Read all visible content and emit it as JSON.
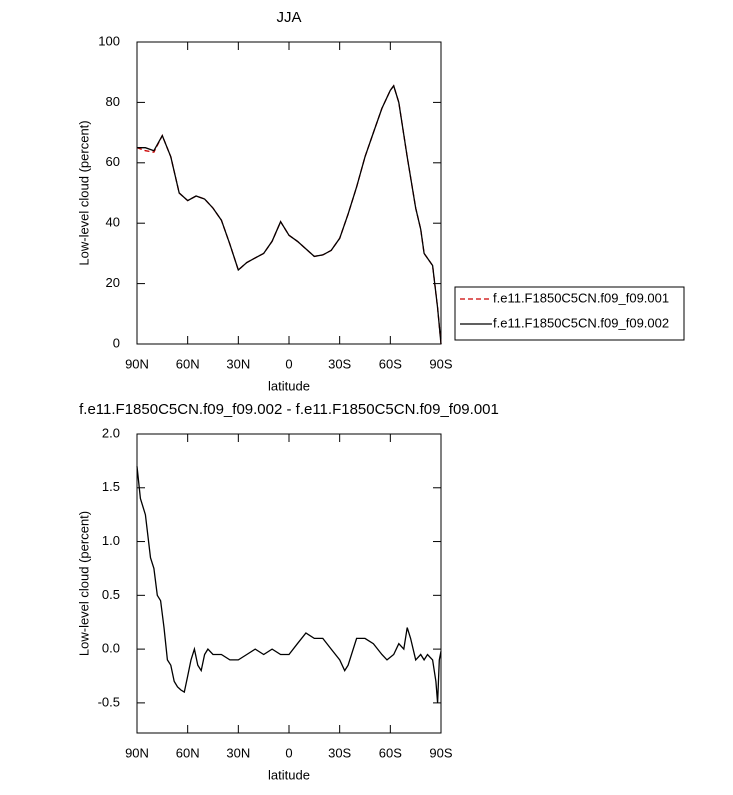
{
  "chart_data": [
    {
      "type": "line",
      "title": "JJA",
      "x_label": "latitude",
      "y_label": "Low-level cloud (percent)",
      "x": [
        90,
        85,
        80,
        75,
        70,
        65,
        60,
        55,
        50,
        45,
        40,
        35,
        30,
        25,
        20,
        15,
        10,
        5,
        0,
        -5,
        -10,
        -15,
        -20,
        -25,
        -30,
        -35,
        -40,
        -45,
        -50,
        -55,
        -60,
        -62,
        -65,
        -70,
        -75,
        -78,
        -80,
        -85,
        -88,
        -90
      ],
      "series": [
        {
          "name": "f.e11.F1850C5CN.f09_f09.001",
          "color": "#cc0000",
          "linestyle": "dashed",
          "values": [
            65,
            64,
            63.5,
            69,
            62,
            50,
            47.5,
            49,
            48,
            45,
            41,
            33,
            24.5,
            27,
            28.5,
            30,
            34,
            40.5,
            36,
            34,
            31.5,
            29,
            29.5,
            31,
            35,
            43,
            52,
            62,
            70,
            78,
            84,
            85.5,
            80,
            62,
            45,
            38,
            30,
            26,
            12,
            0
          ]
        },
        {
          "name": "f.e11.F1850C5CN.f09_f09.002",
          "color": "#000000",
          "linestyle": "solid",
          "values": [
            65,
            65,
            64,
            69,
            62,
            50,
            47.5,
            49,
            48,
            45,
            41,
            33,
            24.5,
            27,
            28.5,
            30,
            34,
            40.5,
            36,
            34,
            31.5,
            29,
            29.5,
            31,
            35,
            43,
            52,
            62,
            70,
            78,
            84,
            85.5,
            80,
            62,
            45,
            38,
            30,
            26,
            12,
            0
          ]
        }
      ],
      "xlim": [
        90,
        -90
      ],
      "xticks": [
        {
          "value": 90,
          "label": "90N"
        },
        {
          "value": 60,
          "label": "60N"
        },
        {
          "value": 30,
          "label": "30N"
        },
        0,
        {
          "value": -30,
          "label": "30S"
        },
        {
          "value": -60,
          "label": "60S"
        },
        {
          "value": -90,
          "label": "90S"
        }
      ],
      "ylim": [
        0,
        100
      ],
      "yticks": [
        0,
        20,
        40,
        60,
        80,
        100
      ],
      "legend": "right"
    },
    {
      "type": "line",
      "title": "f.e11.F1850C5CN.f09_f09.002 - f.e11.F1850C5CN.f09_f09.001",
      "x_label": "latitude",
      "y_label": "Low-level cloud (percent)",
      "x": [
        90,
        88,
        85,
        82,
        80,
        78,
        76,
        74,
        72,
        70,
        68,
        66,
        64,
        62,
        60,
        58,
        56,
        54,
        52,
        50,
        48,
        45,
        40,
        35,
        30,
        25,
        20,
        15,
        10,
        5,
        0,
        -5,
        -10,
        -15,
        -20,
        -25,
        -30,
        -33,
        -35,
        -40,
        -45,
        -50,
        -55,
        -58,
        -62,
        -65,
        -68,
        -70,
        -72,
        -75,
        -78,
        -80,
        -82,
        -85,
        -87,
        -88,
        -89,
        -90
      ],
      "series": [
        {
          "color": "#000000",
          "linestyle": "solid",
          "values": [
            1.7,
            1.4,
            1.25,
            0.85,
            0.75,
            0.5,
            0.45,
            0.2,
            -0.1,
            -0.15,
            -0.3,
            -0.35,
            -0.38,
            -0.4,
            -0.25,
            -0.1,
            0.0,
            -0.15,
            -0.2,
            -0.05,
            0.0,
            -0.05,
            -0.05,
            -0.1,
            -0.1,
            -0.05,
            0.0,
            -0.05,
            0.0,
            -0.05,
            -0.05,
            0.05,
            0.15,
            0.1,
            0.1,
            0.0,
            -0.1,
            -0.2,
            -0.15,
            0.1,
            0.1,
            0.05,
            -0.05,
            -0.1,
            -0.05,
            0.05,
            0.0,
            0.2,
            0.1,
            -0.1,
            -0.05,
            -0.1,
            -0.05,
            -0.1,
            -0.3,
            -0.5,
            -0.1,
            -0.02
          ]
        }
      ],
      "xlim": [
        90,
        -90
      ],
      "xticks": [
        {
          "value": 90,
          "label": "90N"
        },
        {
          "value": 60,
          "label": "60N"
        },
        {
          "value": 30,
          "label": "30N"
        },
        0,
        {
          "value": -30,
          "label": "30S"
        },
        {
          "value": -60,
          "label": "60S"
        },
        {
          "value": -90,
          "label": "90S"
        }
      ],
      "ylim": [
        -0.78,
        2.0
      ],
      "yticks": [
        {
          "value": -0.5,
          "label": "-0.5"
        },
        {
          "value": 0,
          "label": "0.0"
        },
        0.5,
        {
          "value": 1,
          "label": "1.0"
        },
        1.5,
        {
          "value": 2,
          "label": "2.0"
        }
      ]
    }
  ]
}
